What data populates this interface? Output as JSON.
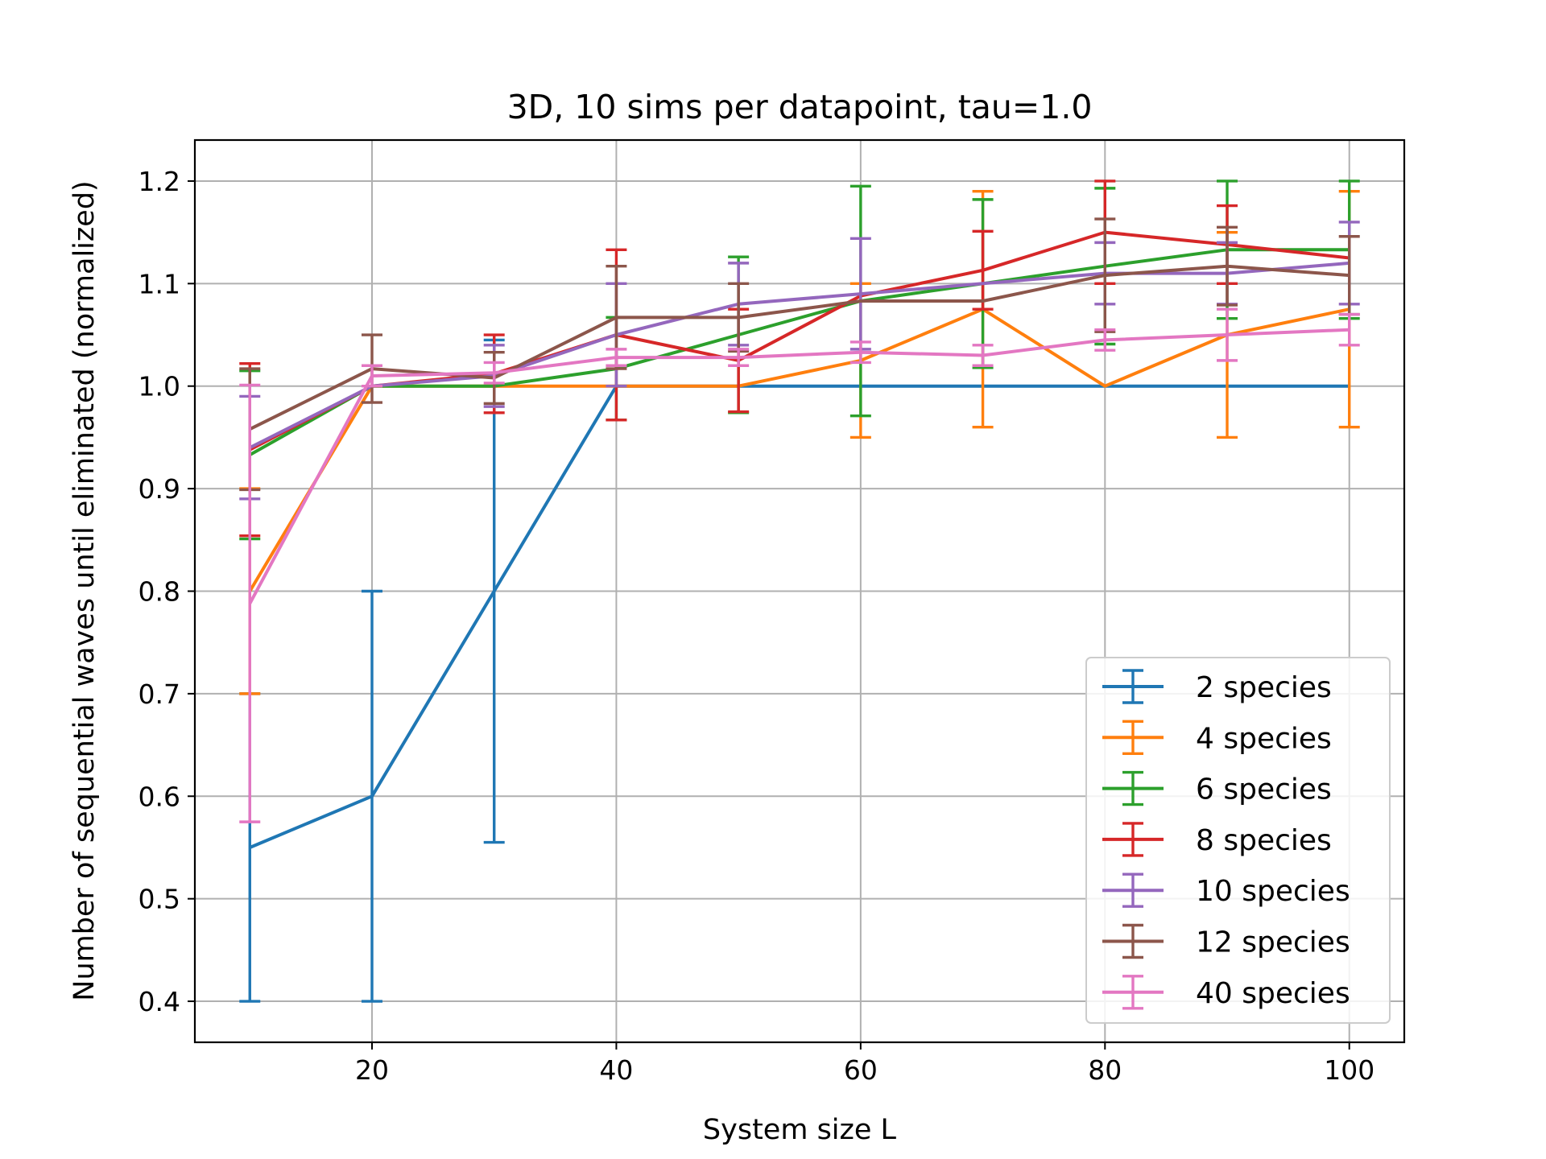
{
  "chart_data": {
    "type": "line",
    "title": "3D, 10 sims per datapoint, tau=1.0",
    "xlabel": "System size L",
    "ylabel": "Number of sequential waves until eliminated (normalized)",
    "xlim": [
      5.5,
      104.5
    ],
    "ylim": [
      0.36,
      1.24
    ],
    "xticks": [
      20,
      40,
      60,
      80,
      100
    ],
    "xtick_labels": [
      "20",
      "40",
      "60",
      "80",
      "100"
    ],
    "yticks": [
      0.4,
      0.5,
      0.6,
      0.7,
      0.8,
      0.9,
      1.0,
      1.1,
      1.2
    ],
    "ytick_labels": [
      "0.4",
      "0.5",
      "0.6",
      "0.7",
      "0.8",
      "0.9",
      "1.0",
      "1.1",
      "1.2"
    ],
    "grid": true,
    "legend_position": "lower-right",
    "x": [
      10,
      20,
      30,
      40,
      50,
      60,
      70,
      80,
      90,
      100
    ],
    "series": [
      {
        "name": "2 species",
        "color": "#1f77b4",
        "values": [
          0.55,
          0.6,
          0.8,
          1.0,
          1.0,
          1.0,
          1.0,
          1.0,
          1.0,
          1.0
        ],
        "errors": [
          0.15,
          0.2,
          0.245,
          0,
          0,
          0,
          0,
          0,
          0,
          0
        ]
      },
      {
        "name": "4 species",
        "color": "#ff7f0e",
        "values": [
          0.8,
          1.0,
          1.0,
          1.0,
          1.0,
          1.025,
          1.075,
          1.0,
          1.05,
          1.075
        ],
        "errors": [
          0.1,
          0,
          0,
          0,
          0,
          0.075,
          0.115,
          0,
          0.1,
          0.115
        ]
      },
      {
        "name": "6 species",
        "color": "#2ca02c",
        "values": [
          0.933,
          1.0,
          1.0,
          1.017,
          1.05,
          1.083,
          1.1,
          1.117,
          1.133,
          1.133
        ],
        "errors": [
          0.082,
          0,
          0,
          0.05,
          0.076,
          0.112,
          0.082,
          0.076,
          0.067,
          0.067
        ]
      },
      {
        "name": "8 species",
        "color": "#d62728",
        "values": [
          0.938,
          1.0,
          1.012,
          1.05,
          1.025,
          1.088,
          1.113,
          1.15,
          1.138,
          1.125
        ],
        "errors": [
          0.084,
          0,
          0.038,
          0.083,
          0.05,
          0,
          0.038,
          0.05,
          0.038,
          0
        ]
      },
      {
        "name": "10 species",
        "color": "#9467bd",
        "values": [
          0.94,
          1.0,
          1.01,
          1.05,
          1.08,
          1.09,
          1.1,
          1.11,
          1.11,
          1.12
        ],
        "errors": [
          0.05,
          0,
          0.03,
          0.05,
          0.04,
          0.054,
          0,
          0.03,
          0.03,
          0.04
        ]
      },
      {
        "name": "12 species",
        "color": "#8c564b",
        "values": [
          0.958,
          1.017,
          1.008,
          1.067,
          1.067,
          1.083,
          1.083,
          1.108,
          1.117,
          1.108
        ],
        "errors": [
          0.059,
          0.033,
          0.025,
          0.05,
          0.033,
          0,
          0,
          0.055,
          0.038,
          0.038
        ]
      },
      {
        "name": "40 species",
        "color": "#e377c2",
        "values": [
          0.788,
          1.01,
          1.013,
          1.028,
          1.028,
          1.033,
          1.03,
          1.045,
          1.05,
          1.055
        ],
        "errors": [
          0.213,
          0.01,
          0.01,
          0.008,
          0.008,
          0.01,
          0.01,
          0.01,
          0.025,
          0.015
        ]
      }
    ]
  }
}
